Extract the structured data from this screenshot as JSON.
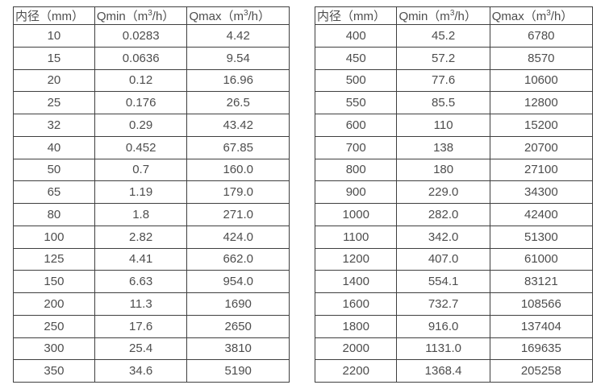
{
  "tables": [
    {
      "name": "flow-table-small-diameters",
      "headers": [
        "内径（mm）",
        "Qmin（m³/h）",
        "Qmax（m³/h）"
      ],
      "rows": [
        [
          "10",
          "0.0283",
          "4.42"
        ],
        [
          "15",
          "0.0636",
          "9.54"
        ],
        [
          "20",
          "0.12",
          "16.96"
        ],
        [
          "25",
          "0.176",
          "26.5"
        ],
        [
          "32",
          "0.29",
          "43.42"
        ],
        [
          "40",
          "0.452",
          "67.85"
        ],
        [
          "50",
          "0.7",
          "160.0"
        ],
        [
          "65",
          "1.19",
          "179.0"
        ],
        [
          "80",
          "1.8",
          "271.0"
        ],
        [
          "100",
          "2.82",
          "424.0"
        ],
        [
          "125",
          "4.41",
          "662.0"
        ],
        [
          "150",
          "6.63",
          "954.0"
        ],
        [
          "200",
          "11.3",
          "1690"
        ],
        [
          "250",
          "17.6",
          "2650"
        ],
        [
          "300",
          "25.4",
          "3810"
        ],
        [
          "350",
          "34.6",
          "5190"
        ]
      ]
    },
    {
      "name": "flow-table-large-diameters",
      "headers": [
        "内径（mm）",
        "Qmin（m³/h）",
        "Qmax（m³/h）"
      ],
      "rows": [
        [
          "400",
          "45.2",
          "6780"
        ],
        [
          "450",
          "57.2",
          "8570"
        ],
        [
          "500",
          "77.6",
          "10600"
        ],
        [
          "550",
          "85.5",
          "12800"
        ],
        [
          "600",
          "110",
          "15200"
        ],
        [
          "700",
          "138",
          "20700"
        ],
        [
          "800",
          "180",
          "27100"
        ],
        [
          "900",
          "229.0",
          "34300"
        ],
        [
          "1000",
          "282.0",
          "42400"
        ],
        [
          "1100",
          "342.0",
          "51300"
        ],
        [
          "1200",
          "407.0",
          "61000"
        ],
        [
          "1400",
          "554.1",
          "83121"
        ],
        [
          "1600",
          "732.7",
          "108566"
        ],
        [
          "1800",
          "916.0",
          "137404"
        ],
        [
          "2000",
          "1131.0",
          "169635"
        ],
        [
          "2200",
          "1368.4",
          "205258"
        ]
      ]
    }
  ],
  "colors": {
    "text": "#4d4d4d",
    "border": "#3f3f3f",
    "background": "#ffffff"
  }
}
